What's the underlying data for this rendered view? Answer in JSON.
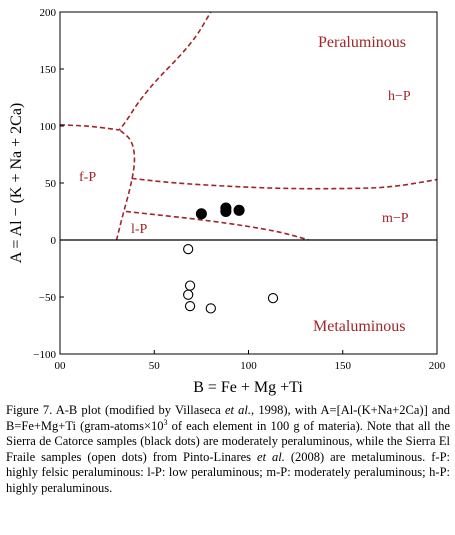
{
  "chart_data": {
    "type": "scatter",
    "title": "",
    "xlabel": "B = Fe + Mg +Ti",
    "ylabel": "A = Al − (K + Na + 2Ca)",
    "xlim": [
      0,
      200
    ],
    "ylim": [
      -100,
      200
    ],
    "x_ticks": [
      "00",
      "50",
      "100",
      "150",
      "200"
    ],
    "y_ticks": [
      "200",
      "150",
      "100",
      "50",
      "0",
      "−50",
      "−100"
    ],
    "grid": false,
    "legend": "none",
    "series": [
      {
        "marker": "filled-circle",
        "color": "#000000",
        "points": [
          [
            75,
            23
          ],
          [
            88,
            25
          ],
          [
            88,
            28
          ],
          [
            95,
            26
          ]
        ]
      },
      {
        "marker": "open-circle",
        "color": "#000000",
        "points": [
          [
            68,
            -8
          ],
          [
            69,
            -40
          ],
          [
            68,
            -48
          ],
          [
            69,
            -58
          ],
          [
            80,
            -60
          ],
          [
            113,
            -51
          ]
        ]
      }
    ],
    "boundaries": [
      {
        "style": "dashed",
        "color": "#a0262a",
        "points": [
          [
            0,
            101
          ],
          [
            15,
            100
          ],
          [
            30,
            97
          ],
          [
            32,
            96
          ],
          [
            45,
            130
          ],
          [
            70,
            172
          ],
          [
            80,
            200
          ]
        ]
      },
      {
        "style": "dashed",
        "color": "#a0262a",
        "points": [
          [
            32,
            96
          ],
          [
            38,
            88
          ],
          [
            40,
            72
          ],
          [
            38,
            50
          ],
          [
            33,
            20
          ],
          [
            30,
            0
          ]
        ]
      },
      {
        "style": "dashed",
        "color": "#a0262a",
        "points": [
          [
            38,
            54
          ],
          [
            60,
            50
          ],
          [
            90,
            47
          ],
          [
            120,
            45
          ],
          [
            150,
            45
          ],
          [
            175,
            46
          ],
          [
            200,
            53
          ]
        ]
      },
      {
        "style": "dashed",
        "color": "#a0262a",
        "points": [
          [
            35,
            25
          ],
          [
            80,
            17
          ],
          [
            115,
            8
          ],
          [
            132,
            0
          ]
        ]
      }
    ],
    "region_labels": {
      "peraluminous": "Peraluminous",
      "hp": "h−P",
      "fp": "f-P",
      "mp": "m−P",
      "lp": "l-P",
      "metaluminous": "Metaluminous"
    },
    "region_color": "#a0262a"
  },
  "caption": {
    "part1": "Figure 7. A-B plot (modified by Villaseca ",
    "etal1": "et al.",
    "part2": ", 1998), with A=[Al-(K+Na+2Ca)] and B=Fe+Mg+Ti (gram-atoms×10",
    "sup": "3",
    "part3": " of each element in 100 g of materia). Note that all the Sierra de Catorce samples (black dots) are moderately peraluminous, while the Sierra El Fraile samples (open dots) from Pinto-Linares ",
    "etal2": "et al.",
    "part4": " (2008) are metaluminous. f-P: highly felsic peraluminous: l-P: low peraluminous; m-P: moderately peraluminous; h-P: highly peraluminous."
  }
}
